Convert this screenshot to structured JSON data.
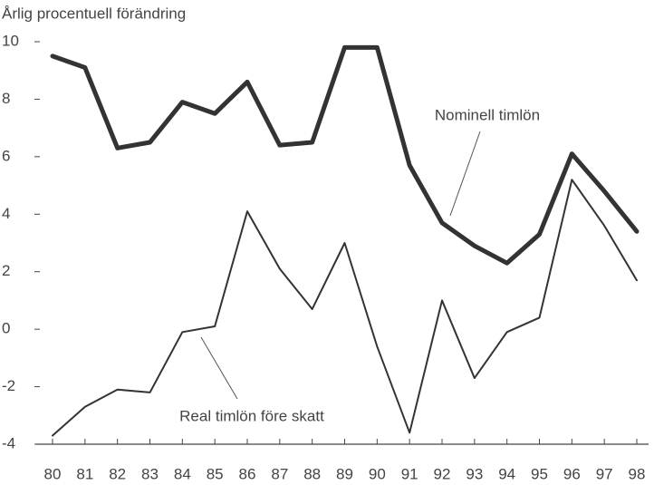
{
  "chart_data": {
    "type": "line",
    "ylabel": "Årlig procentuell förändring",
    "categories": [
      "80",
      "81",
      "82",
      "83",
      "84",
      "85",
      "86",
      "87",
      "88",
      "89",
      "90",
      "91",
      "92",
      "93",
      "94",
      "95",
      "96",
      "97",
      "98"
    ],
    "series": [
      {
        "name": "Nominell timlön",
        "color": "#333333",
        "values": [
          9.5,
          9.1,
          6.3,
          6.5,
          7.9,
          7.5,
          8.6,
          6.4,
          6.5,
          9.8,
          9.8,
          5.7,
          3.7,
          2.9,
          2.3,
          3.3,
          6.1,
          4.8,
          3.4
        ]
      },
      {
        "name": "Real timlön före skatt",
        "color": "#333333",
        "values": [
          -3.7,
          -2.7,
          -2.1,
          -2.2,
          -0.1,
          0.1,
          4.1,
          2.1,
          0.7,
          3.0,
          -0.6,
          -3.6,
          1.0,
          -1.7,
          -0.1,
          0.4,
          5.2,
          3.6,
          1.7
        ]
      }
    ],
    "ylim": [
      -4,
      10
    ],
    "yticks": [
      -4,
      -2,
      0,
      2,
      4,
      6,
      8,
      10
    ]
  }
}
